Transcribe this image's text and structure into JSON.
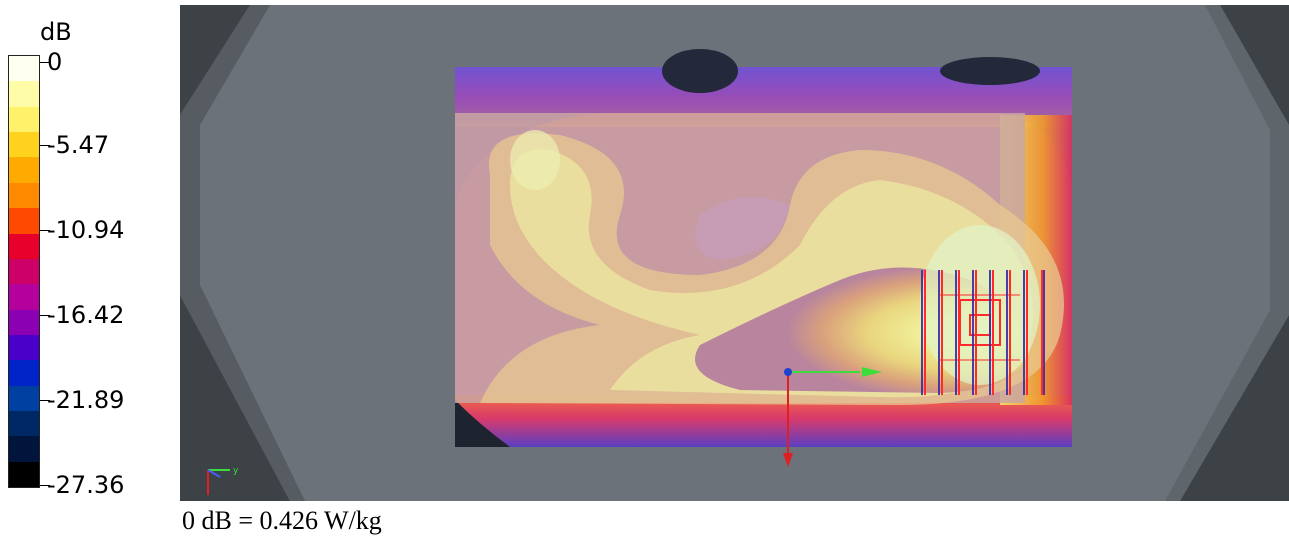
{
  "legend": {
    "unit": "dB",
    "labels": [
      "0",
      "-5.47",
      "-10.94",
      "-16.42",
      "-21.89",
      "-27.36"
    ],
    "colors": [
      "#fffff0",
      "#fffca8",
      "#fff26a",
      "#ffd21e",
      "#ffaa00",
      "#ff8a00",
      "#ff4a00",
      "#e8002a",
      "#cc0066",
      "#b4009c",
      "#8c00b4",
      "#4a00c8",
      "#0024c8",
      "#0040a0",
      "#002864",
      "#00143c",
      "#000000"
    ]
  },
  "caption": "0 dB = 0.426 W/kg",
  "colors": {
    "phantom": "#6b7279",
    "background": "#3c4245",
    "axis_x": "#3cdc3c",
    "axis_y": "#e02020",
    "grid": "#ff3030"
  },
  "icons": {
    "axis_triad": "axis-triad-icon"
  }
}
